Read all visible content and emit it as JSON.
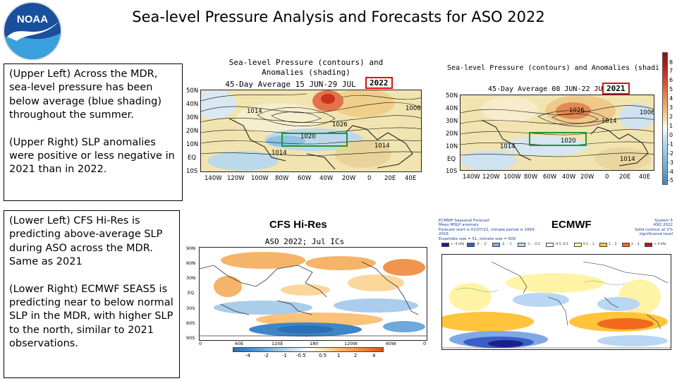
{
  "slide": {
    "title": "Sea-level Pressure Analysis and Forecasts for ASO 2022"
  },
  "logo": {
    "text": "NOAA",
    "colors": {
      "top": "#1a4f9c",
      "bottom": "#3aa0dd",
      "bird": "#ffffff"
    }
  },
  "upper_text": {
    "p1": "(Upper Left) Across the MDR, sea-level pressure has been below average (blue shading) throughout the summer.",
    "p2": "(Upper Right) SLP anomalies were positive or less negative in 2021 than in 2022."
  },
  "lower_text": {
    "p1": "(Lower Left) CFS Hi-Res is predicting above-average SLP during ASO across the MDR. Same as 2021",
    "p2": "(Lower Right) ECMWF SEAS5 is predicting near to below normal SLP in the MDR, with higher SLP to the north, similar to 2021 observations."
  },
  "upper_left_map": {
    "title_line1": "Sea-level Pressure (contours) and",
    "title_line2": "Anomalies (shading)",
    "title_line3": "45-Day Average 15 JUN-29 JUL",
    "year": "2022",
    "lat_labels": [
      "50N",
      "40N",
      "30N",
      "20N",
      "10N",
      "EQ",
      "10S"
    ],
    "lon_labels": [
      "140W",
      "120W",
      "100W",
      "80W",
      "60W",
      "40W",
      "20W",
      "0",
      "20E",
      "40E"
    ],
    "contour_labels": [
      "1014",
      "1026",
      "1020",
      "1014",
      "1006",
      "1014"
    ]
  },
  "upper_right_map": {
    "title_line1": "Sea-level Pressure (contours) and Anomalies (shading",
    "title_line2": "45-Day Average 08 JUN-22 JU",
    "year": "2021",
    "lat_labels": [
      "50N",
      "40N",
      "30N",
      "20N",
      "10N",
      "EQ",
      "10S"
    ],
    "lon_labels": [
      "140W",
      "120W",
      "100W",
      "80W",
      "60W",
      "40W",
      "20W",
      "0",
      "20E",
      "40E"
    ],
    "contour_labels": [
      "1026",
      "1014",
      "1020",
      "1014",
      "1006",
      "1014"
    ],
    "colorbar": [
      "8",
      "7",
      "6",
      "5",
      "4",
      "3",
      "2",
      "1",
      "0",
      "-1",
      "-2",
      "-3",
      "-4",
      "-5"
    ]
  },
  "cfs_map": {
    "heading": "CFS Hi-Res",
    "subtitle": "ASO 2022; Jul ICs",
    "lat_labels": [
      "90N",
      "60N",
      "30N",
      "EQ",
      "30S",
      "60S",
      "90S"
    ],
    "lon_labels": [
      "0",
      "60E",
      "120E",
      "180",
      "120W",
      "60W",
      "0"
    ],
    "colorbar": [
      "-4",
      "-2",
      "-1",
      "-0.5",
      "0.5",
      "1",
      "2",
      "4"
    ]
  },
  "ecmwf_map": {
    "heading": "ECMWF",
    "header_left_1": "ECMWF Seasonal Forecast",
    "header_left_2": "Mean MSLP anomaly",
    "header_left_3": "Forecast start is 01/07/22, climate period is 1993-2016",
    "header_left_4": "Ensemble size = 51, climate size = 600",
    "header_right_1": "System 5",
    "header_right_2": "ASO 2022",
    "header_right_3": "Solid contour at 1% significance level",
    "legend": [
      "< -4 hPa",
      "-4 .. -2",
      "-2 .. -1",
      "-1 .. -0.5",
      "-0.5..0.5",
      "0.5 .. 1",
      "1 .. 2",
      "2 .. 4",
      "> 4 hPa"
    ],
    "legend_colors": [
      "#1a1f8a",
      "#3a5ec8",
      "#7fa9e6",
      "#b9d6f3",
      "#ffffff",
      "#fff3a6",
      "#ffc43b",
      "#f06a1e",
      "#b01a1a"
    ]
  }
}
